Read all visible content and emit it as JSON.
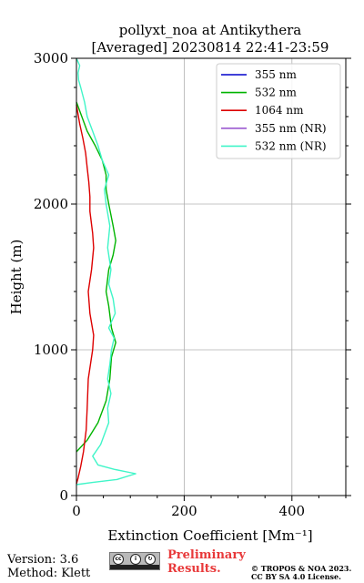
{
  "chart_data": {
    "type": "line",
    "title": "pollyxt_noa at Antikythera",
    "subtitle": "[Averaged] 20230814 22:41-23:59",
    "xlabel": "Extinction Coefficient [Mm⁻¹]",
    "ylabel": "Height (m)",
    "xlim": [
      0,
      500
    ],
    "ylim": [
      0,
      3000
    ],
    "x_ticks": [
      0,
      200,
      400
    ],
    "y_ticks": [
      0,
      1000,
      2000,
      3000
    ],
    "grid": true,
    "legend_position": "top-right",
    "series": [
      {
        "name": "355 nm",
        "color": "#0000cc",
        "points": []
      },
      {
        "name": "532 nm",
        "color": "#00b400",
        "points": [
          [
            0,
            300
          ],
          [
            20,
            380
          ],
          [
            40,
            500
          ],
          [
            55,
            650
          ],
          [
            62,
            800
          ],
          [
            65,
            950
          ],
          [
            73,
            1050
          ],
          [
            65,
            1150
          ],
          [
            60,
            1300
          ],
          [
            55,
            1400
          ],
          [
            60,
            1550
          ],
          [
            68,
            1650
          ],
          [
            73,
            1750
          ],
          [
            68,
            1850
          ],
          [
            60,
            2000
          ],
          [
            55,
            2100
          ],
          [
            55,
            2200
          ],
          [
            48,
            2300
          ],
          [
            35,
            2400
          ],
          [
            20,
            2500
          ],
          [
            10,
            2600
          ],
          [
            0,
            2700
          ]
        ]
      },
      {
        "name": "1064 nm",
        "color": "#dd0000",
        "points": [
          [
            0,
            80
          ],
          [
            3,
            120
          ],
          [
            8,
            200
          ],
          [
            13,
            300
          ],
          [
            18,
            450
          ],
          [
            20,
            600
          ],
          [
            22,
            800
          ],
          [
            30,
            1000
          ],
          [
            32,
            1100
          ],
          [
            25,
            1250
          ],
          [
            22,
            1400
          ],
          [
            28,
            1550
          ],
          [
            32,
            1700
          ],
          [
            30,
            1800
          ],
          [
            25,
            1950
          ],
          [
            25,
            2050
          ],
          [
            23,
            2150
          ],
          [
            20,
            2250
          ],
          [
            17,
            2350
          ],
          [
            12,
            2450
          ],
          [
            6,
            2550
          ],
          [
            0,
            2680
          ]
        ]
      },
      {
        "name": "355 nm (NR)",
        "color": "#9b59d0",
        "points": []
      },
      {
        "name": "532 nm (NR)",
        "color": "#40f5c8",
        "points": [
          [
            0,
            75
          ],
          [
            30,
            90
          ],
          [
            75,
            110
          ],
          [
            110,
            150
          ],
          [
            70,
            180
          ],
          [
            40,
            210
          ],
          [
            30,
            270
          ],
          [
            45,
            350
          ],
          [
            60,
            500
          ],
          [
            58,
            600
          ],
          [
            64,
            700
          ],
          [
            58,
            800
          ],
          [
            62,
            900
          ],
          [
            65,
            1000
          ],
          [
            70,
            1080
          ],
          [
            60,
            1150
          ],
          [
            72,
            1250
          ],
          [
            68,
            1350
          ],
          [
            60,
            1450
          ],
          [
            64,
            1550
          ],
          [
            58,
            1700
          ],
          [
            62,
            1850
          ],
          [
            55,
            2000
          ],
          [
            52,
            2100
          ],
          [
            60,
            2200
          ],
          [
            48,
            2300
          ],
          [
            40,
            2400
          ],
          [
            30,
            2500
          ],
          [
            20,
            2600
          ],
          [
            15,
            2700
          ],
          [
            8,
            2800
          ],
          [
            4,
            2850
          ],
          [
            3,
            2900
          ],
          [
            6,
            2950
          ],
          [
            0,
            3000
          ]
        ]
      }
    ]
  },
  "footer": {
    "version": "Version: 3.6",
    "method": "Method: Klett",
    "preliminary": "Preliminary Results.",
    "copyright": "© TROPOS & NOA 2023. CC BY SA 4.0 License.",
    "license_badge": {
      "label": "cc",
      "icons": [
        "cc-icon",
        "by-icon",
        "sa-icon"
      ]
    }
  }
}
